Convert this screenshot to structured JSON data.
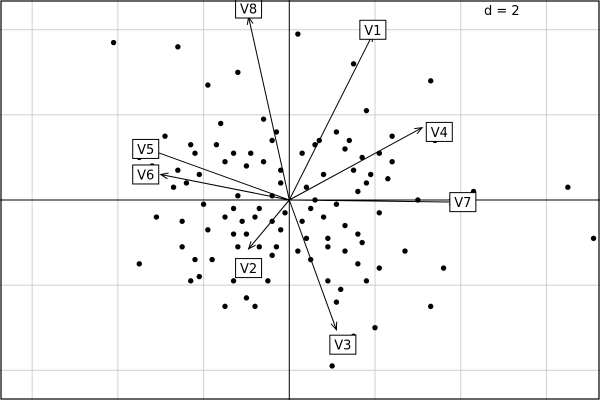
{
  "chart_data": {
    "type": "scatter",
    "subtype": "biplot",
    "grid_step": 2,
    "grid": true,
    "xlim": [
      -6.75,
      7.25
    ],
    "ylim": [
      -4.7,
      4.7
    ],
    "scale_label": "d = 2",
    "origin": [
      0,
      0
    ],
    "points": [
      [
        -4.1,
        3.7
      ],
      [
        -2.6,
        3.6
      ],
      [
        0.2,
        3.9
      ],
      [
        -1.9,
        2.7
      ],
      [
        -1.2,
        3.0
      ],
      [
        1.5,
        3.2
      ],
      [
        3.3,
        2.8
      ],
      [
        -1.6,
        1.8
      ],
      [
        -0.6,
        1.9
      ],
      [
        -0.3,
        1.6
      ],
      [
        1.8,
        2.1
      ],
      [
        -2.9,
        1.5
      ],
      [
        -2.3,
        1.3
      ],
      [
        -1.7,
        1.3
      ],
      [
        -0.4,
        1.4
      ],
      [
        0.7,
        1.4
      ],
      [
        1.1,
        1.6
      ],
      [
        1.4,
        1.4
      ],
      [
        2.4,
        1.5
      ],
      [
        3.4,
        1.4
      ],
      [
        -3.5,
        1.0
      ],
      [
        -2.2,
        1.1
      ],
      [
        -1.3,
        1.1
      ],
      [
        -0.9,
        1.1
      ],
      [
        -0.6,
        0.9
      ],
      [
        0.3,
        1.1
      ],
      [
        0.6,
        1.3
      ],
      [
        1.3,
        1.2
      ],
      [
        1.7,
        1.0
      ],
      [
        2.1,
        1.1
      ],
      [
        2.4,
        0.9
      ],
      [
        -3.2,
        0.8
      ],
      [
        -2.6,
        0.7
      ],
      [
        -2.1,
        0.6
      ],
      [
        -1.5,
        0.9
      ],
      [
        -1.0,
        0.8
      ],
      [
        -0.2,
        0.7
      ],
      [
        0.8,
        0.6
      ],
      [
        1.5,
        0.7
      ],
      [
        1.9,
        0.6
      ],
      [
        2.3,
        0.5
      ],
      [
        -2.7,
        0.3
      ],
      [
        -2.4,
        0.4
      ],
      [
        -0.2,
        0.4
      ],
      [
        0.4,
        0.3
      ],
      [
        1.6,
        0.2
      ],
      [
        1.8,
        0.4
      ],
      [
        -1.2,
        0.1
      ],
      [
        -0.4,
        0.1
      ],
      [
        3.0,
        0.0
      ],
      [
        4.3,
        0.2
      ],
      [
        0.6,
        0.0
      ],
      [
        -2.0,
        -0.1
      ],
      [
        -1.3,
        -0.2
      ],
      [
        -0.7,
        -0.2
      ],
      [
        -0.1,
        -0.3
      ],
      [
        0.5,
        -0.2
      ],
      [
        1.1,
        -0.1
      ],
      [
        2.1,
        -0.3
      ],
      [
        -3.1,
        -0.4
      ],
      [
        -2.5,
        -0.5
      ],
      [
        -1.5,
        -0.4
      ],
      [
        -1.1,
        -0.5
      ],
      [
        -0.8,
        -0.4
      ],
      [
        -0.4,
        -0.5
      ],
      [
        0.3,
        -0.5
      ],
      [
        0.8,
        -0.4
      ],
      [
        1.3,
        -0.6
      ],
      [
        -1.9,
        -0.7
      ],
      [
        -1.3,
        -0.8
      ],
      [
        -1.0,
        -0.8
      ],
      [
        -0.2,
        -0.7
      ],
      [
        0.4,
        -0.9
      ],
      [
        0.9,
        -0.9
      ],
      [
        1.6,
        -0.8
      ],
      [
        -2.5,
        -1.1
      ],
      [
        -1.2,
        -1.1
      ],
      [
        -0.7,
        -1.1
      ],
      [
        -0.3,
        -1.1
      ],
      [
        0.2,
        -1.2
      ],
      [
        0.9,
        -1.1
      ],
      [
        1.3,
        -1.2
      ],
      [
        1.7,
        -1.0
      ],
      [
        2.7,
        -1.2
      ],
      [
        -3.5,
        -1.5
      ],
      [
        -2.2,
        -1.4
      ],
      [
        -1.8,
        -1.4
      ],
      [
        -0.4,
        -1.3
      ],
      [
        0.5,
        -1.4
      ],
      [
        1.6,
        -1.5
      ],
      [
        2.1,
        -1.6
      ],
      [
        3.6,
        -1.6
      ],
      [
        -2.3,
        -1.9
      ],
      [
        -2.1,
        -1.8
      ],
      [
        -1.3,
        -1.9
      ],
      [
        -0.5,
        -1.9
      ],
      [
        0.9,
        -1.9
      ],
      [
        1.2,
        -2.1
      ],
      [
        1.8,
        -1.9
      ],
      [
        -1.0,
        -2.3
      ],
      [
        -1.5,
        -2.5
      ],
      [
        -0.8,
        -2.5
      ],
      [
        1.1,
        -2.4
      ],
      [
        2.0,
        -3.0
      ],
      [
        3.3,
        -2.5
      ],
      [
        1.5,
        -3.2
      ],
      [
        7.1,
        -0.9
      ],
      [
        6.5,
        0.3
      ],
      [
        3.3,
        1.5
      ],
      [
        1.0,
        -3.9
      ]
    ],
    "vectors": [
      {
        "name": "V1",
        "x": 1.95,
        "y": 3.9,
        "label_x": 1.95,
        "label_y": 4.0
      },
      {
        "name": "V2",
        "x": -0.95,
        "y": -1.15,
        "label_x": -0.95,
        "label_y": -1.6
      },
      {
        "name": "V3",
        "x": 1.1,
        "y": -3.05,
        "label_x": 1.25,
        "label_y": -3.4
      },
      {
        "name": "V4",
        "x": 3.1,
        "y": 1.7,
        "label_x": 3.5,
        "label_y": 1.6
      },
      {
        "name": "V5",
        "x": -3.3,
        "y": 1.2,
        "label_x": -3.35,
        "label_y": 1.2
      },
      {
        "name": "V6",
        "x": -3.0,
        "y": 0.6,
        "label_x": -3.35,
        "label_y": 0.6
      },
      {
        "name": "V7",
        "x": 3.9,
        "y": -0.05,
        "label_x": 4.05,
        "label_y": -0.05
      },
      {
        "name": "V8",
        "x": -0.95,
        "y": 4.3,
        "label_x": -0.95,
        "label_y": 4.5
      }
    ]
  }
}
